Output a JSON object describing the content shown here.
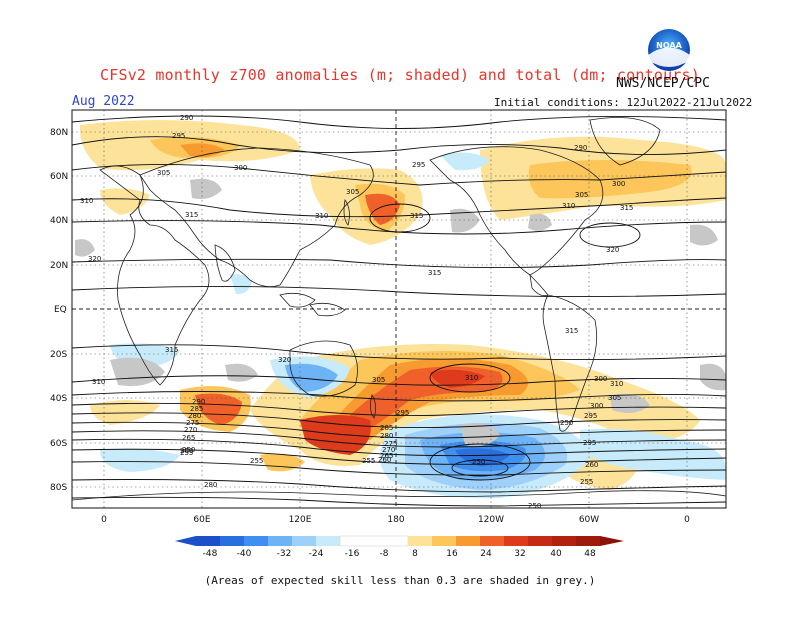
{
  "header": {
    "title": "CFSv2 monthly z700 anomalies (m; shaded) and total (dm; contours)",
    "valid_month": "Aug 2022",
    "agency": "NWS/NCEP/CPC",
    "initial_conditions": "Initial conditions: 12Jul2022-21Jul2022",
    "logo_text": "NOAA"
  },
  "axes": {
    "lat_labels": [
      "80N",
      "60N",
      "40N",
      "20N",
      "EQ",
      "20S",
      "40S",
      "60S",
      "80S"
    ],
    "lon_labels": [
      "0",
      "60E",
      "120E",
      "180",
      "120W",
      "60W",
      "0"
    ]
  },
  "colorbar": {
    "ticks": [
      "-48",
      "-40",
      "-32",
      "-24",
      "-16",
      "-8",
      "8",
      "16",
      "24",
      "32",
      "40",
      "48"
    ],
    "colors": {
      "n48": "#1c4fc8",
      "n40": "#2a6fe0",
      "n32": "#3f8ff0",
      "n24": "#6fb3f7",
      "n16": "#9fd0fa",
      "n8": "#c8ebfb",
      "white": "#ffffff",
      "p8": "#fde39a",
      "p16": "#fcc65a",
      "p24": "#f79a30",
      "p32": "#f0602a",
      "p40": "#de3a1c",
      "p48": "#b3200f"
    }
  },
  "contours": {
    "labels": [
      "290",
      "295",
      "300",
      "305",
      "310",
      "315",
      "320",
      "310",
      "305",
      "315",
      "320",
      "315",
      "310",
      "305",
      "295",
      "290",
      "285",
      "280",
      "275",
      "270",
      "265",
      "260",
      "255",
      "250",
      "260",
      "255",
      "250",
      "260",
      "255",
      "280",
      "305",
      "310",
      "315",
      "300",
      "295",
      "290",
      "285",
      "280",
      "275",
      "270",
      "265",
      "250",
      "250",
      "295",
      "295",
      "300",
      "305",
      "310",
      "315",
      "320",
      "315",
      "310",
      "300",
      "255"
    ]
  },
  "footnote": "(Areas of expected skill less than 0.3 are shaded in grey.)"
}
